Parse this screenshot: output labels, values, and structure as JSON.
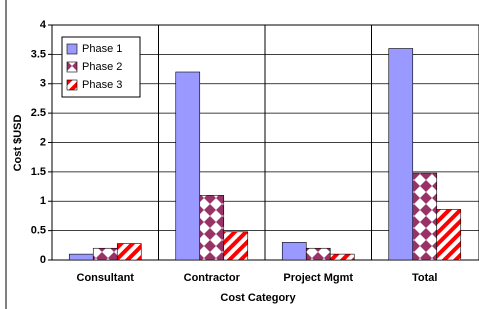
{
  "chart_data": {
    "type": "bar",
    "x_label": "Cost Category",
    "y_label": "Cost $USD",
    "categories": [
      "Consultant",
      "Contractor",
      "Project Mgmt",
      "Total"
    ],
    "series": [
      {
        "name": "Phase 1",
        "color": "#9999ff",
        "values": [
          0.1,
          3.2,
          0.3,
          3.6
        ]
      },
      {
        "name": "Phase 2",
        "color": "#993366",
        "values": [
          0.2,
          1.1,
          0.2,
          1.48
        ]
      },
      {
        "name": "Phase 3",
        "color": "#ff0000",
        "values": [
          0.28,
          0.48,
          0.1,
          0.86
        ]
      }
    ],
    "ylim": [
      0,
      4
    ],
    "yticks": [
      0,
      0.5,
      1,
      1.5,
      2,
      2.5,
      3,
      3.5,
      4
    ],
    "grid": true,
    "legend": "upper left"
  }
}
